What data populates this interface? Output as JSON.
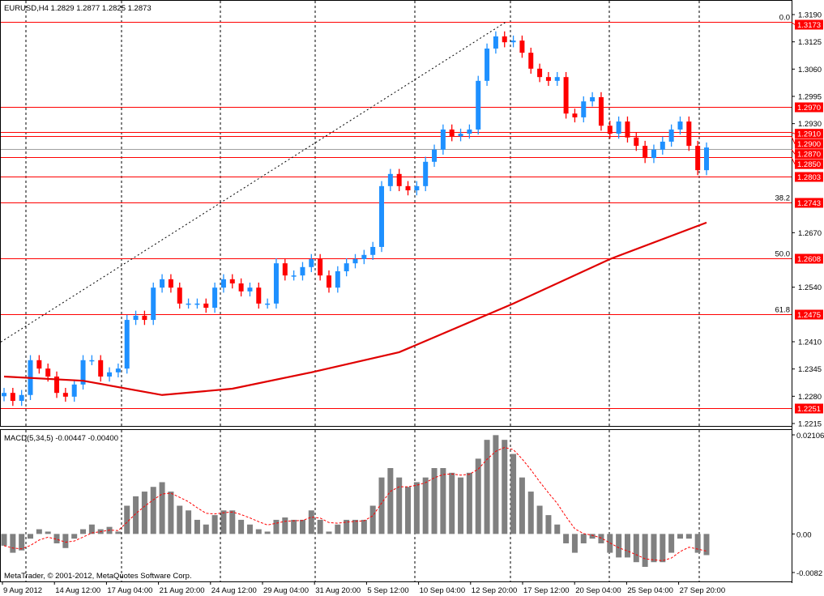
{
  "chart_data": {
    "type": "candlestick",
    "header": "EURUSD,H4  1.2829 1.2877 1.2825 1.2873",
    "macd_label": "MACD(5,34,5) -0.00447 -0.00400",
    "copyright": "MetaTrader, © 2001-2012, MetaQuotes Software Corp.",
    "price_ylim": [
      1.2215,
      1.319
    ],
    "price_ticks": [
      "1.3190",
      "1.3125",
      "1.3060",
      "1.2995",
      "1.2930",
      "1.2670",
      "1.2540",
      "1.2410",
      "1.2345",
      "1.2280",
      "1.2215"
    ],
    "macd_ticks": [
      "0.02106",
      "0.00",
      "-0.0082"
    ],
    "macd_ylim": [
      -0.0082,
      0.02106
    ],
    "time_labels": [
      "9 Aug 2012",
      "14 Aug 12:00",
      "17 Aug 04:00",
      "21 Aug 20:00",
      "24 Aug 12:00",
      "29 Aug 04:00",
      "31 Aug 20:00",
      "5 Sep 12:00",
      "10 Sep 04:00",
      "12 Sep 20:00",
      "17 Sep 12:00",
      "20 Sep 04:00",
      "25 Sep 04:00",
      "27 Sep 20:00"
    ],
    "closes": [
      1.2288,
      1.2269,
      1.2283,
      1.2366,
      1.2346,
      1.2327,
      1.2288,
      1.2279,
      1.2308,
      1.2366,
      1.2366,
      1.2327,
      1.2337,
      1.2346,
      1.2462,
      1.2472,
      1.2462,
      1.2539,
      1.2559,
      1.2539,
      1.2501,
      1.2501,
      1.2501,
      1.2491,
      1.2539,
      1.2559,
      1.2549,
      1.253,
      1.2539,
      1.2501,
      1.2501,
      1.2597,
      1.2568,
      1.2568,
      1.2588,
      1.2607,
      1.2568,
      1.2539,
      1.2578,
      1.2597,
      1.2607,
      1.2617,
      1.2636,
      1.2781,
      1.281,
      1.2781,
      1.2771,
      1.2781,
      1.2839,
      1.2868,
      1.2916,
      1.29,
      1.2906,
      1.2916,
      1.3032,
      1.3109,
      1.3138,
      1.3124,
      1.3128,
      1.3099,
      1.3061,
      1.3041,
      1.3032,
      1.3041,
      1.2954,
      1.2945,
      1.2983,
      1.2993,
      1.2925,
      1.2906,
      1.2935,
      1.2897,
      1.2877,
      1.2848,
      1.2868,
      1.2887,
      1.2916,
      1.2935,
      1.2877,
      1.2819,
      1.2873
    ],
    "macd": [
      -0.0025,
      -0.004,
      -0.0035,
      -0.001,
      0.001,
      0.0005,
      -0.002,
      -0.003,
      -0.001,
      0.001,
      0.002,
      0.001,
      0.0015,
      0.0005,
      0.006,
      0.008,
      0.009,
      0.01,
      0.011,
      0.009,
      0.006,
      0.005,
      0.003,
      0.002,
      0.004,
      0.005,
      0.005,
      0.003,
      0.002,
      0.001,
      0.0005,
      0.003,
      0.0035,
      0.003,
      0.003,
      0.005,
      0.003,
      0.0005,
      0.002,
      0.003,
      0.003,
      0.003,
      0.006,
      0.012,
      0.014,
      0.012,
      0.01,
      0.011,
      0.012,
      0.014,
      0.014,
      0.013,
      0.012,
      0.013,
      0.016,
      0.02,
      0.021,
      0.02,
      0.017,
      0.012,
      0.009,
      0.006,
      0.004,
      0.002,
      -0.002,
      -0.004,
      -0.002,
      -0.001,
      -0.002,
      -0.004,
      -0.005,
      -0.005,
      -0.006,
      -0.007,
      -0.006,
      -0.006,
      -0.004,
      -0.001,
      -0.001,
      -0.004,
      -0.0045
    ],
    "moving_average": [
      [
        0,
        1.2327
      ],
      [
        9,
        1.2317
      ],
      [
        18,
        1.2283
      ],
      [
        26,
        1.2298
      ],
      [
        35,
        1.2337
      ],
      [
        45,
        1.2385
      ],
      [
        58,
        1.2501
      ],
      [
        69,
        1.2607
      ],
      [
        80,
        1.2694
      ]
    ],
    "levels": [
      {
        "price": 1.3173,
        "label": "1.3173",
        "fib": "0.0",
        "color": "#ff0000"
      },
      {
        "price": 1.297,
        "label": "1.2970",
        "fib": "",
        "color": "#ff0000"
      },
      {
        "price": 1.291,
        "label": "1.2910",
        "fib": "",
        "color": "#ff0000"
      },
      {
        "price": 1.29,
        "label": "1.2900",
        "fib": "",
        "color": "#ff0000"
      },
      {
        "price": 1.287,
        "label": "1.2870",
        "fib": "",
        "color": "#a0a0a0"
      },
      {
        "price": 1.285,
        "label": "1.2850",
        "fib": "",
        "color": "#ff0000"
      },
      {
        "price": 1.2803,
        "label": "1.2803",
        "fib": "",
        "color": "#ff0000"
      },
      {
        "price": 1.2743,
        "label": "1.2743",
        "fib": "38.2",
        "color": "#ff0000"
      },
      {
        "price": 1.2608,
        "label": "1.2608",
        "fib": "50.0",
        "color": "#ff0000"
      },
      {
        "price": 1.2475,
        "label": "1.2475",
        "fib": "61.8",
        "color": "#ff0000"
      },
      {
        "price": 1.2251,
        "label": "1.2251",
        "fib": "",
        "color": "#ff0000"
      }
    ],
    "colors": {
      "bull": "#1e90ff",
      "bear": "#ff0000",
      "ma": "#e00000",
      "histogram": "#808080",
      "signal": "#ff0000",
      "background": "#ffffff"
    }
  }
}
